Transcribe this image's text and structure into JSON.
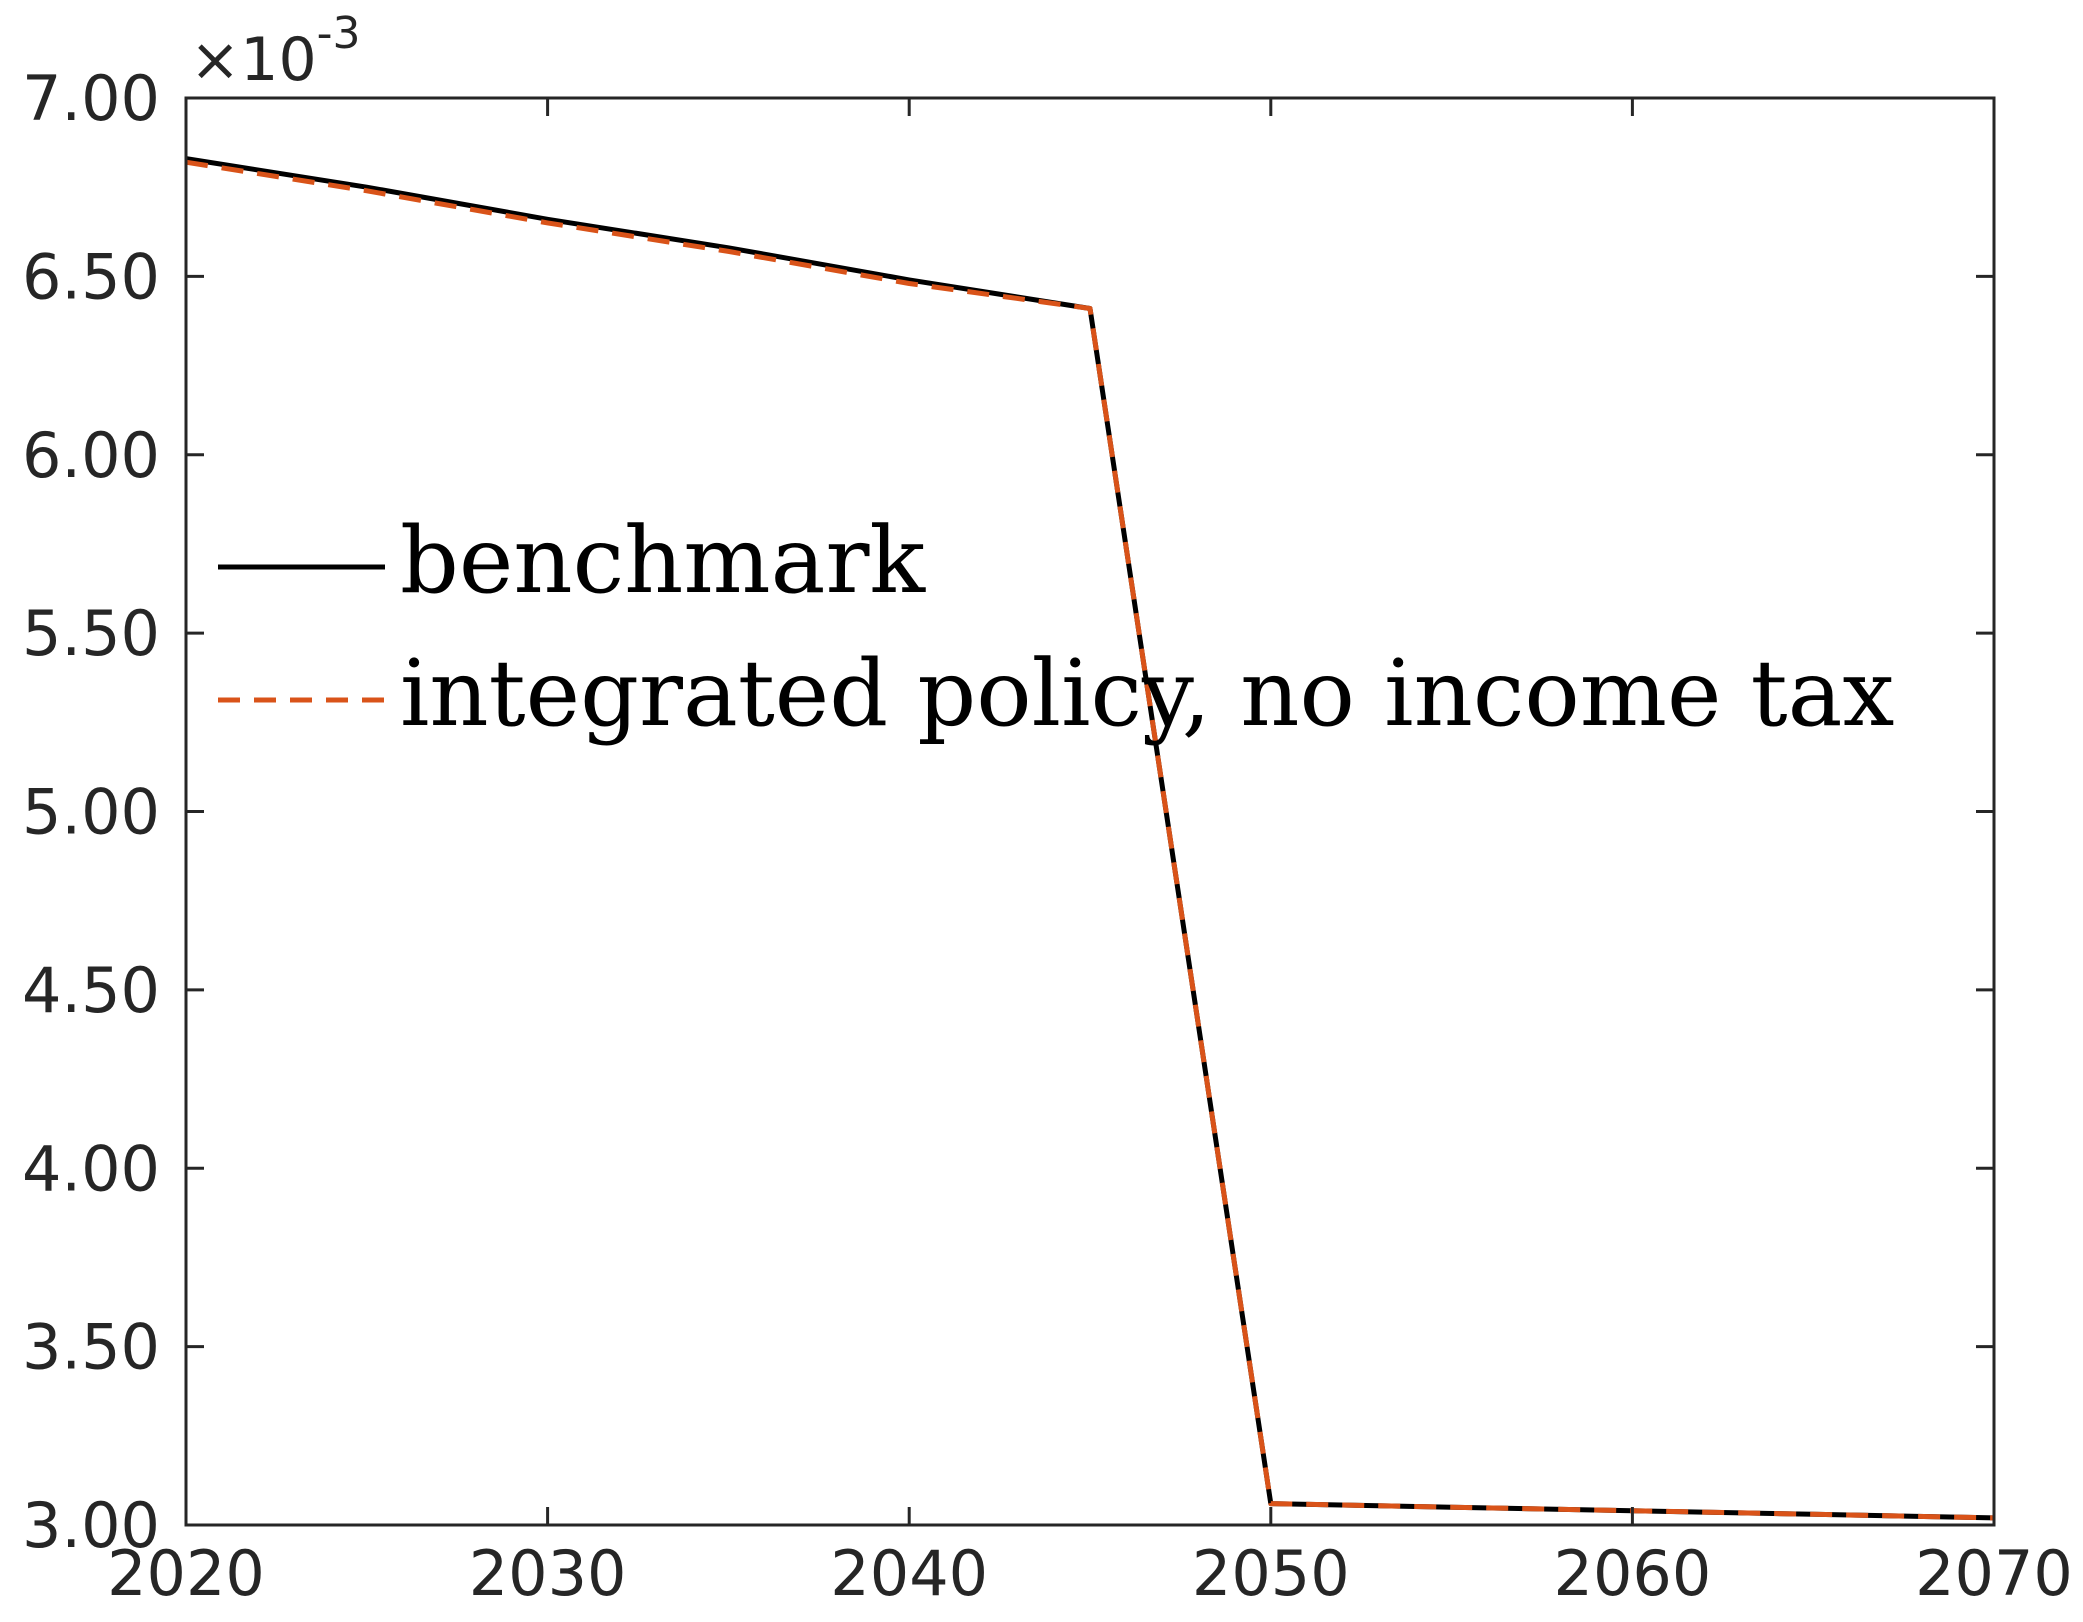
{
  "chart_data": {
    "type": "line",
    "title": "",
    "xlabel": "",
    "ylabel": "",
    "y_multiplier_label": {
      "base": "×10",
      "exponent": "-3"
    },
    "xlim": [
      2020,
      2070
    ],
    "ylim": [
      3.0,
      7.0
    ],
    "x_ticks": [
      2020,
      2030,
      2040,
      2050,
      2060,
      2070
    ],
    "x_tick_labels": [
      "2020",
      "2030",
      "2040",
      "2050",
      "2060",
      "2070"
    ],
    "y_ticks": [
      3.0,
      3.5,
      4.0,
      4.5,
      5.0,
      5.5,
      6.0,
      6.5,
      7.0
    ],
    "y_tick_labels": [
      "3.00",
      "3.50",
      "4.00",
      "4.50",
      "5.00",
      "5.50",
      "6.00",
      "6.50",
      "7.00"
    ],
    "grid": false,
    "legend_position": "middle-left",
    "series": [
      {
        "name": "benchmark",
        "color": "#000000",
        "style": "solid",
        "x": [
          2020,
          2025,
          2030,
          2035,
          2040,
          2045,
          2050,
          2055,
          2060,
          2065,
          2070
        ],
        "y": [
          6.83,
          6.75,
          6.66,
          6.58,
          6.49,
          6.41,
          3.06,
          3.05,
          3.04,
          3.03,
          3.02
        ]
      },
      {
        "name": "integrated policy, no income tax",
        "color": "#D95319",
        "style": "dashed",
        "x": [
          2020,
          2025,
          2030,
          2035,
          2040,
          2045,
          2050,
          2055,
          2060,
          2065,
          2070
        ],
        "y": [
          6.82,
          6.74,
          6.65,
          6.57,
          6.48,
          6.41,
          3.06,
          3.05,
          3.04,
          3.03,
          3.02
        ]
      }
    ]
  }
}
